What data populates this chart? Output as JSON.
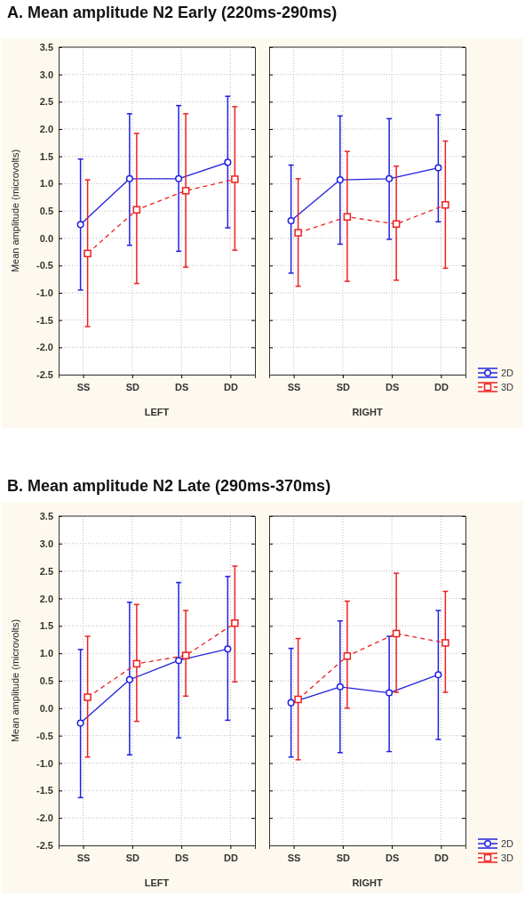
{
  "chart_data": [
    {
      "type": "line",
      "title": "A. Mean amplitude N2 Early (220ms-290ms)",
      "ylabel": "Mean amplitude (microvolts)",
      "xlabel": "LEFT",
      "categories": [
        "SS",
        "SD",
        "DS",
        "DD"
      ],
      "ylim": [
        -2.5,
        3.5
      ],
      "yticks": [
        {
          "value": -2.5,
          "label": "-2.5"
        },
        {
          "value": -2,
          "label": "-2.0"
        },
        {
          "value": -1.5,
          "label": "-1.5"
        },
        {
          "value": -1,
          "label": "-1.0"
        },
        {
          "value": -0.5,
          "label": "-0.5"
        },
        {
          "value": 0,
          "label": "0.0"
        },
        {
          "value": 0.5,
          "label": "0.5"
        },
        {
          "value": 1,
          "label": "1.0"
        },
        {
          "value": 1.5,
          "label": "1.5"
        },
        {
          "value": 2,
          "label": "2.0"
        },
        {
          "value": 2.5,
          "label": "2.5"
        },
        {
          "value": 3,
          "label": "3.0"
        },
        {
          "value": 3.5,
          "label": "3.5"
        }
      ],
      "grid": true,
      "legend": false,
      "series": [
        {
          "color": "#2020e0",
          "marker": "circle",
          "line_style": "solid",
          "values": [
            0.25,
            1.09,
            1.09,
            1.39
          ],
          "errors": [
            [
              -0.95,
              1.45
            ],
            [
              -0.13,
              2.28
            ],
            [
              -0.24,
              2.43
            ],
            [
              0.19,
              2.6
            ]
          ]
        },
        {
          "color": "#ee2020",
          "marker": "square",
          "line_style": "dashed",
          "values": [
            -0.28,
            0.52,
            0.87,
            1.08
          ],
          "errors": [
            [
              -1.62,
              1.07
            ],
            [
              -0.83,
              1.92
            ],
            [
              -0.53,
              2.28
            ],
            [
              -0.22,
              2.41
            ]
          ]
        }
      ]
    },
    {
      "type": "line",
      "xlabel": "RIGHT",
      "categories": [
        "SS",
        "SD",
        "DS",
        "DD"
      ],
      "ylim": [
        -2.5,
        3.5
      ],
      "yticks": [
        -2.5,
        -2,
        -1.5,
        -1,
        -0.5,
        0,
        0.5,
        1,
        1.5,
        2,
        2.5,
        3,
        3.5
      ],
      "tick_labels": "x",
      "grid": true,
      "legend": "bottom right",
      "series": [
        {
          "name": "2D",
          "color": "#2020e0",
          "marker": "circle",
          "line_style": "solid",
          "values": [
            0.32,
            1.07,
            1.09,
            1.29
          ],
          "errors": [
            [
              -0.64,
              1.34
            ],
            [
              -0.11,
              2.24
            ],
            [
              -0.02,
              2.19
            ],
            [
              0.3,
              2.26
            ]
          ]
        },
        {
          "name": "3D",
          "color": "#ee2020",
          "marker": "square",
          "line_style": "dashed",
          "values": [
            0.1,
            0.39,
            0.26,
            0.61
          ],
          "errors": [
            [
              -0.88,
              1.09
            ],
            [
              -0.79,
              1.59
            ],
            [
              -0.77,
              1.32
            ],
            [
              -0.55,
              1.78
            ]
          ]
        }
      ]
    },
    {
      "type": "line",
      "title": "B. Mean amplitude N2 Late (290ms-370ms)",
      "ylabel": "Mean amplitude (microvolts)",
      "xlabel": "LEFT",
      "categories": [
        "SS",
        "SD",
        "DS",
        "DD"
      ],
      "ylim": [
        -2.5,
        3.5
      ],
      "yticks": [
        {
          "value": -2.5,
          "label": "-2.5"
        },
        {
          "value": -2,
          "label": "-2.0"
        },
        {
          "value": -1.5,
          "label": "-1.5"
        },
        {
          "value": -1,
          "label": "-1.0"
        },
        {
          "value": -0.5,
          "label": "-0.5"
        },
        {
          "value": 0,
          "label": "0.0"
        },
        {
          "value": 0.5,
          "label": "0.5"
        },
        {
          "value": 1,
          "label": "1.0"
        },
        {
          "value": 1.5,
          "label": "1.5"
        },
        {
          "value": 2,
          "label": "2.0"
        },
        {
          "value": 2.5,
          "label": "2.5"
        },
        {
          "value": 3,
          "label": "3.0"
        },
        {
          "value": 3.5,
          "label": "3.5"
        }
      ],
      "grid": true,
      "legend": false,
      "series": [
        {
          "color": "#2020e0",
          "marker": "circle",
          "line_style": "solid",
          "values": [
            -0.27,
            0.52,
            0.87,
            1.08
          ],
          "errors": [
            [
              -1.63,
              1.07
            ],
            [
              -0.85,
              1.93
            ],
            [
              -0.54,
              2.29
            ],
            [
              -0.22,
              2.4
            ]
          ]
        },
        {
          "color": "#ee2020",
          "marker": "square",
          "line_style": "dashed",
          "values": [
            0.2,
            0.81,
            0.96,
            1.55
          ],
          "errors": [
            [
              -0.89,
              1.31
            ],
            [
              -0.24,
              1.89
            ],
            [
              0.22,
              1.78
            ],
            [
              0.48,
              2.59
            ]
          ]
        }
      ]
    },
    {
      "type": "line",
      "xlabel": "RIGHT",
      "categories": [
        "SS",
        "SD",
        "DS",
        "DD"
      ],
      "ylim": [
        -2.5,
        3.5
      ],
      "yticks": [
        -2.5,
        -2,
        -1.5,
        -1,
        -0.5,
        0,
        0.5,
        1,
        1.5,
        2,
        2.5,
        3,
        3.5
      ],
      "tick_labels": "x",
      "grid": true,
      "legend": "bottom right",
      "series": [
        {
          "name": "2D",
          "color": "#2020e0",
          "marker": "circle",
          "line_style": "solid",
          "values": [
            0.1,
            0.39,
            0.28,
            0.61
          ],
          "errors": [
            [
              -0.89,
              1.09
            ],
            [
              -0.81,
              1.59
            ],
            [
              -0.79,
              1.31
            ],
            [
              -0.57,
              1.78
            ]
          ]
        },
        {
          "name": "3D",
          "color": "#ee2020",
          "marker": "square",
          "line_style": "dashed",
          "values": [
            0.16,
            0.95,
            1.36,
            1.19
          ],
          "errors": [
            [
              -0.94,
              1.27
            ],
            [
              0,
              1.95
            ],
            [
              0.29,
              2.46
            ],
            [
              0.29,
              2.13
            ]
          ]
        }
      ]
    }
  ]
}
